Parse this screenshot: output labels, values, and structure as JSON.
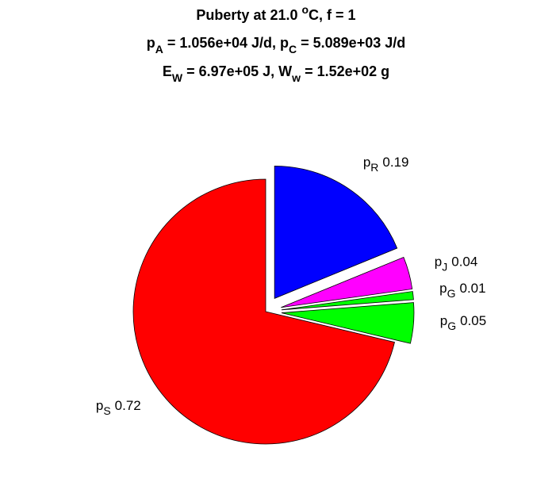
{
  "chart_data": {
    "type": "pie",
    "title": [
      [
        {
          "text": "Puberty at 21.0 "
        },
        {
          "sup": "o"
        },
        {
          "text": "C, f = 1"
        }
      ],
      [
        {
          "text": "p"
        },
        {
          "sub": "A"
        },
        {
          "text": " = 1.056e+04 J/d,  p"
        },
        {
          "sub": "C"
        },
        {
          "text": " = 5.089e+03 J/d"
        }
      ],
      [
        {
          "text": "E"
        },
        {
          "sub": "W"
        },
        {
          "text": " = 6.97e+05 J, W"
        },
        {
          "sub": "w"
        },
        {
          "text": " = 1.52e+02 g"
        }
      ]
    ],
    "slices": [
      {
        "label": {
          "base": "p",
          "sub": "R"
        },
        "value": 0.19,
        "color": "#0000ff",
        "explode": true
      },
      {
        "label": {
          "base": "p",
          "sub": "J"
        },
        "value": 0.04,
        "color": "#ff00ff",
        "explode": true
      },
      {
        "label": {
          "base": "p",
          "sub": "G"
        },
        "value": 0.01,
        "color": "#00ff00",
        "explode": true
      },
      {
        "label": {
          "base": "p",
          "sub": "G"
        },
        "value": 0.05,
        "color": "#00ff00",
        "explode": true
      },
      {
        "label": {
          "base": "p",
          "sub": "S"
        },
        "value": 0.72,
        "color": "#ff0000",
        "explode": false
      }
    ]
  }
}
